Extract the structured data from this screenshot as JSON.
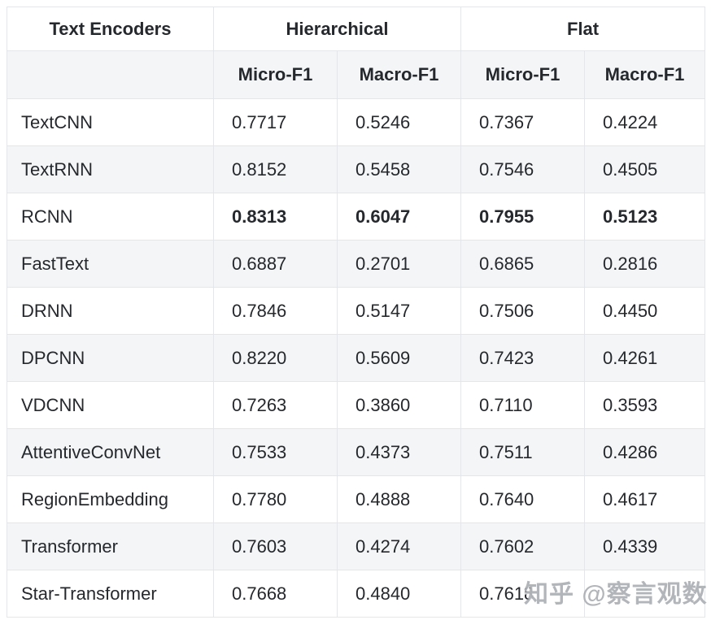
{
  "table": {
    "col1_header": "Text Encoders",
    "group_headers": [
      {
        "label": "Hierarchical"
      },
      {
        "label": "Flat"
      }
    ],
    "sub_headers": [
      "Micro-F1",
      "Macro-F1",
      "Micro-F1",
      "Macro-F1"
    ],
    "rows": [
      {
        "encoder": "TextCNN",
        "values": [
          "0.7717",
          "0.5246",
          "0.7367",
          "0.4224"
        ],
        "bold": false
      },
      {
        "encoder": "TextRNN",
        "values": [
          "0.8152",
          "0.5458",
          "0.7546",
          "0.4505"
        ],
        "bold": false
      },
      {
        "encoder": "RCNN",
        "values": [
          "0.8313",
          "0.6047",
          "0.7955",
          "0.5123"
        ],
        "bold": true
      },
      {
        "encoder": "FastText",
        "values": [
          "0.6887",
          "0.2701",
          "0.6865",
          "0.2816"
        ],
        "bold": false
      },
      {
        "encoder": "DRNN",
        "values": [
          "0.7846",
          "0.5147",
          "0.7506",
          "0.4450"
        ],
        "bold": false
      },
      {
        "encoder": "DPCNN",
        "values": [
          "0.8220",
          "0.5609",
          "0.7423",
          "0.4261"
        ],
        "bold": false
      },
      {
        "encoder": "VDCNN",
        "values": [
          "0.7263",
          "0.3860",
          "0.7110",
          "0.3593"
        ],
        "bold": false
      },
      {
        "encoder": "AttentiveConvNet",
        "values": [
          "0.7533",
          "0.4373",
          "0.7511",
          "0.4286"
        ],
        "bold": false
      },
      {
        "encoder": "RegionEmbedding",
        "values": [
          "0.7780",
          "0.4888",
          "0.7640",
          "0.4617"
        ],
        "bold": false
      },
      {
        "encoder": "Transformer",
        "values": [
          "0.7603",
          "0.4274",
          "0.7602",
          "0.4339"
        ],
        "bold": false
      },
      {
        "encoder": "Star-Transformer",
        "values": [
          "0.7668",
          "0.4840",
          "0.7618",
          ""
        ],
        "bold": false
      }
    ]
  },
  "watermark": {
    "text": "知乎 @察言观数"
  },
  "colors": {
    "stripe": "#f4f5f6",
    "border": "#e4e6e9",
    "text": "#25282c",
    "watermark_gray": "#94989e"
  }
}
